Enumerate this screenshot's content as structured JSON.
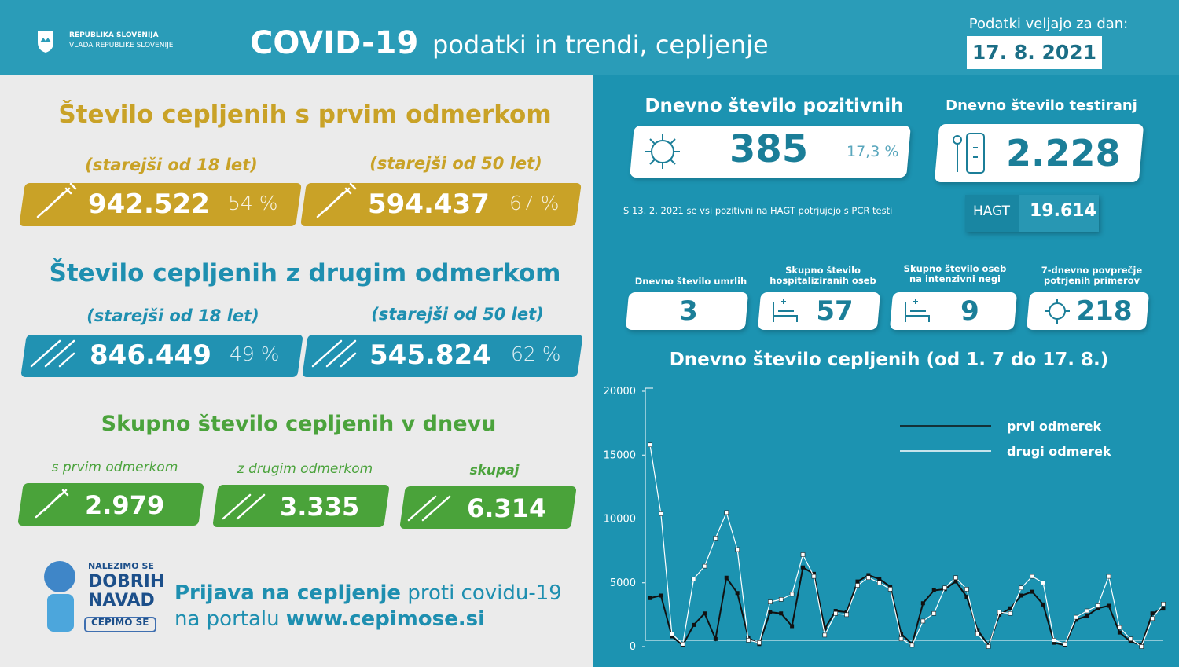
{
  "header": {
    "org": [
      "REPUBLIKA SLOVENIJA",
      "VLADA REPUBLIKE SLOVENIJE"
    ],
    "title": "COVID-19",
    "subtitle": "podatki in trendi, cepljenje",
    "date_label": "Podatki veljajo za dan:",
    "date": "17. 8. 2021"
  },
  "first_dose": {
    "title": "Število cepljenih s prvim odmerkom",
    "groups": [
      {
        "label": "(starejši od 18 let)",
        "count": "942.522",
        "percent": "54 %"
      },
      {
        "label": "(starejši od 50 let)",
        "count": "594.437",
        "percent": "67 %"
      }
    ]
  },
  "second_dose": {
    "title": "Število cepljenih z drugim odmerkom",
    "groups": [
      {
        "label": "(starejši od 18 let)",
        "count": "846.449",
        "percent": "49 %"
      },
      {
        "label": "(starejši od 50 let)",
        "count": "545.824",
        "percent": "62 %"
      }
    ]
  },
  "daily": {
    "title": "Skupno število cepljenih v dnevu",
    "items": [
      {
        "label": "s prvim odmerkom",
        "count": "2.979"
      },
      {
        "label": "z drugim odmerkom",
        "count": "3.335"
      },
      {
        "label": "skupaj",
        "count": "6.314"
      }
    ]
  },
  "promo": {
    "badge": [
      "NALEZIMO SE",
      "DOBRIH",
      "NAVAD",
      "CEPIMO SE"
    ],
    "line1_bold": "Prijava na cepljenje",
    "line1": "proti covidu-19",
    "line2": "na portalu",
    "line2_bold": "www.cepimose.si"
  },
  "positive": {
    "title": "Dnevno število pozitivnih",
    "count": "385",
    "percent": "17,3 %",
    "note": "S 13. 2. 2021 se vsi pozitivni na HAGT potrjujejo s PCR testi"
  },
  "tests": {
    "title": "Dnevno število testiranj",
    "count": "2.228",
    "hagt_label": "HAGT",
    "hagt": "19.614"
  },
  "stats": [
    {
      "label": "Dnevno število umrlih",
      "value": "3"
    },
    {
      "label": "Skupno število hospitaliziranih oseb",
      "value": "57"
    },
    {
      "label": "Skupno število oseb na intenzivni negi",
      "value": "9"
    },
    {
      "label": "7-dnevno povprečje potrjenih primerov",
      "value": "218"
    }
  ],
  "chart_data": {
    "type": "line",
    "title": "Dnevno število cepljenih (od 1. 7 do 17. 8.)",
    "categories": [
      null,
      null,
      null,
      null,
      null,
      null,
      null,
      null,
      null,
      null,
      null,
      null,
      null,
      null,
      null,
      null,
      null,
      null,
      null,
      null,
      null,
      null,
      null,
      null,
      null,
      null,
      null,
      null,
      null,
      null,
      null,
      null,
      null,
      null,
      null,
      null,
      null,
      null,
      null,
      null,
      null,
      null,
      null,
      null,
      null,
      null,
      null,
      null
    ],
    "series": [
      {
        "name": "prvi odmerek",
        "color": "#111111",
        "values": [
          3800,
          4000,
          800,
          100,
          1700,
          2600,
          600,
          5400,
          4200,
          700,
          200,
          2700,
          2600,
          1600,
          6200,
          5700,
          1400,
          2800,
          2700,
          5100,
          5600,
          5300,
          4700,
          1000,
          200,
          3400,
          4400,
          4500,
          5100,
          3900,
          1300,
          100,
          2500,
          3000,
          4000,
          4300,
          3300,
          300,
          100,
          2100,
          2400,
          3000,
          3200,
          1100,
          400,
          100,
          2600,
          2979
        ]
      },
      {
        "name": "drugi odmerek",
        "color": "#ffffff",
        "values": [
          15800,
          10400,
          1000,
          200,
          5300,
          6300,
          8500,
          10500,
          7600,
          500,
          300,
          3500,
          3700,
          4100,
          7200,
          5500,
          900,
          2600,
          2500,
          4800,
          5400,
          5000,
          4500,
          600,
          100,
          2000,
          2600,
          4600,
          5400,
          4500,
          1000,
          0,
          2700,
          2600,
          4600,
          5500,
          5000,
          500,
          200,
          2300,
          2800,
          3200,
          5500,
          1500,
          600,
          0,
          2200,
          3335
        ]
      }
    ],
    "ylim": [
      0,
      20000
    ],
    "yticks": [
      0,
      5000,
      10000,
      15000,
      20000
    ]
  }
}
